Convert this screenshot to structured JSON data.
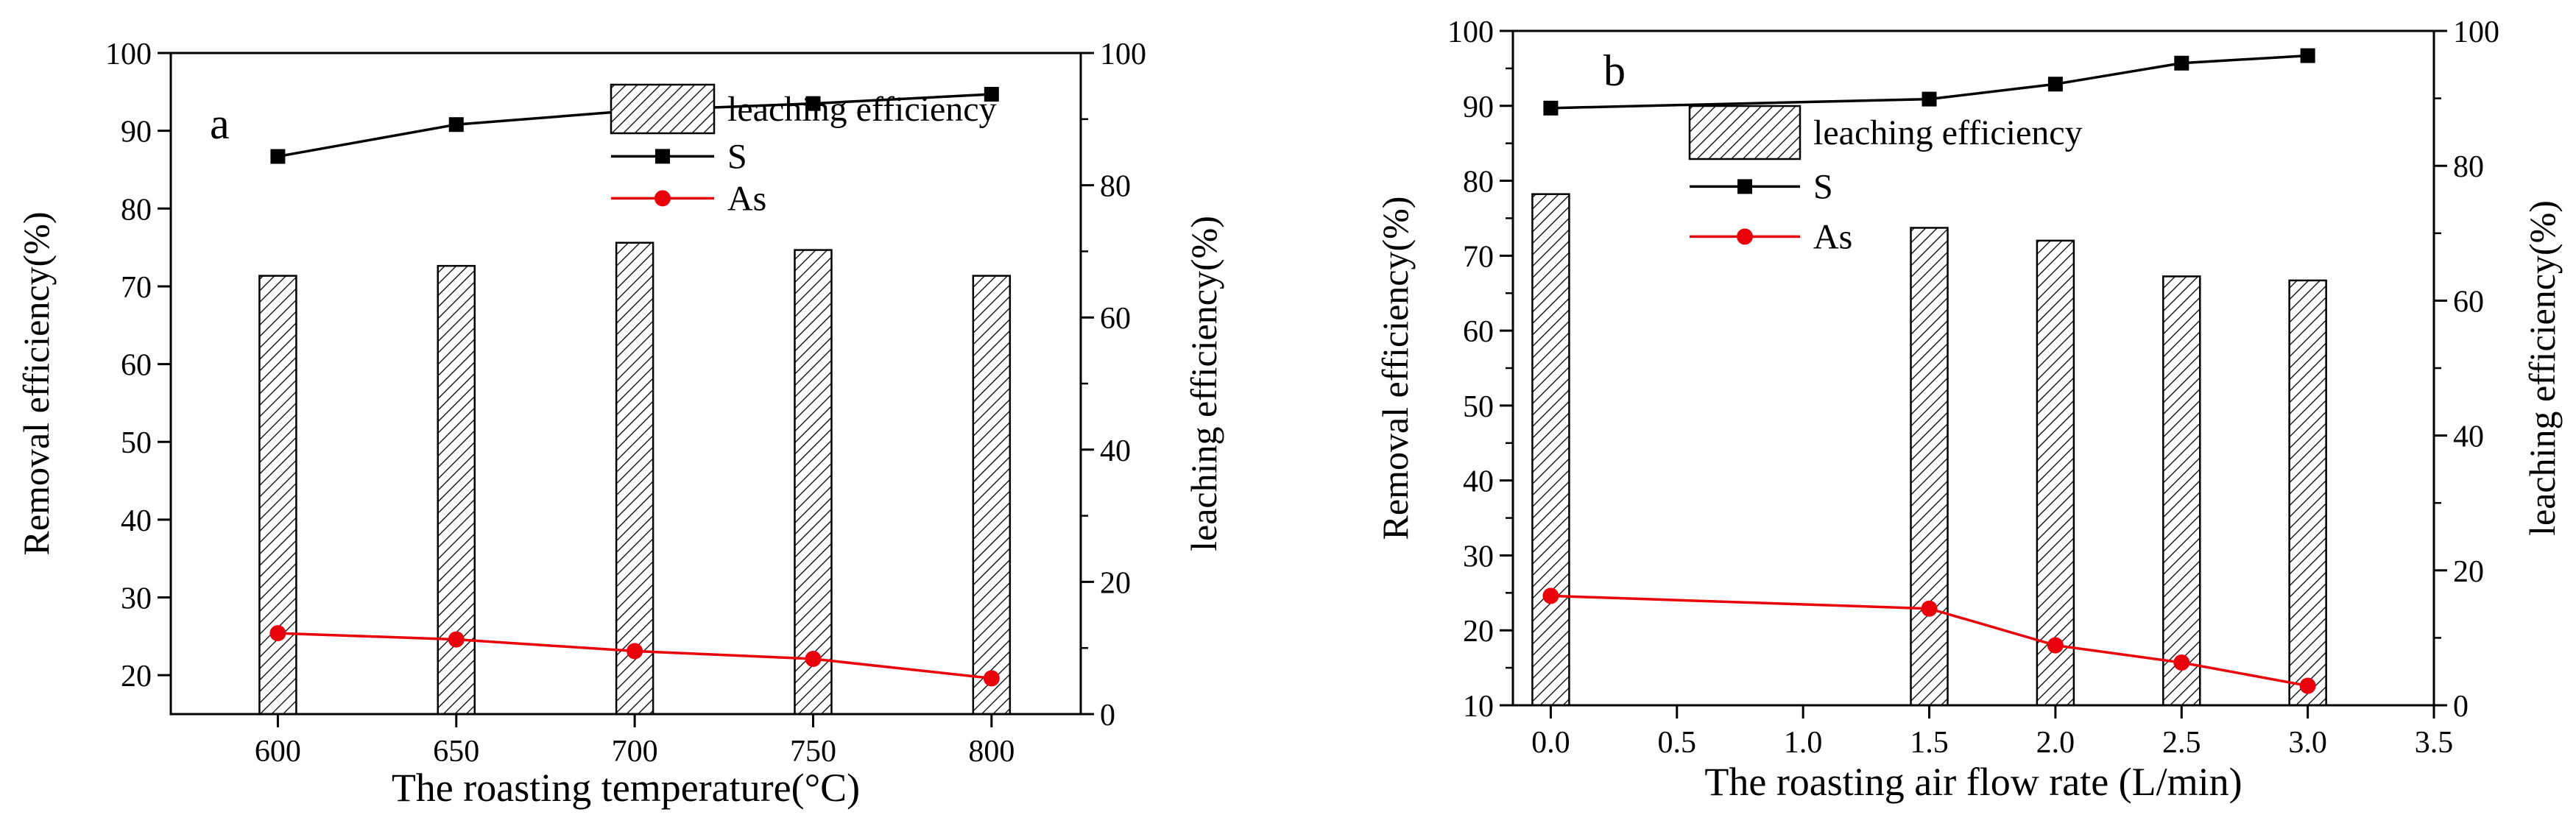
{
  "chart_data": [
    {
      "type": "bar",
      "panel_label": "a",
      "xlabel": "The  roasting temperature(°C)",
      "ylabel": "Removal efficiency(%)",
      "y2label": "leaching efficiency(%)",
      "x_ticks": [
        "600",
        "650",
        "700",
        "750",
        "800"
      ],
      "xlim": [
        570,
        825
      ],
      "ylim": [
        15,
        100
      ],
      "y_ticks": [
        "20",
        "30",
        "40",
        "50",
        "60",
        "70",
        "80",
        "90",
        "100"
      ],
      "y2lim": [
        0,
        100
      ],
      "y2_ticks": [
        "0",
        "20",
        "40",
        "60",
        "80",
        "100"
      ],
      "legend": [
        "leaching efficiency",
        "S",
        "As"
      ],
      "legend_position": "top-right",
      "grid": false,
      "bars": {
        "name": "leaching efficiency",
        "axis": "right",
        "x": [
          600,
          650,
          700,
          750,
          800
        ],
        "values": [
          66.3,
          67.8,
          71.3,
          70.2,
          66.3
        ]
      },
      "series": [
        {
          "name": "S",
          "axis": "left",
          "x": [
            600,
            650,
            700,
            750,
            800
          ],
          "values": [
            86.7,
            90.8,
            92.6,
            93.5,
            94.7
          ],
          "color": "#000000",
          "marker": "square"
        },
        {
          "name": "As",
          "axis": "left",
          "x": [
            600,
            650,
            700,
            750,
            800
          ],
          "values": [
            25.4,
            24.6,
            23.1,
            22.1,
            19.6
          ],
          "color": "#e8000b",
          "marker": "circle"
        }
      ]
    },
    {
      "type": "bar",
      "panel_label": "b",
      "xlabel": "The roasting air flow rate (L/min)",
      "ylabel": "Removal efficiency(%)",
      "y2label": "leaching efficiency(%)",
      "x_ticks": [
        "0.0",
        "0.5",
        "1.0",
        "1.5",
        "2.0",
        "2.5",
        "3.0",
        "3.5"
      ],
      "xlim": [
        -0.15,
        3.5
      ],
      "ylim": [
        10,
        100
      ],
      "y_ticks": [
        "10",
        "20",
        "30",
        "40",
        "50",
        "60",
        "70",
        "80",
        "90",
        "100"
      ],
      "y2lim": [
        0,
        100
      ],
      "y2_ticks": [
        "0",
        "20",
        "40",
        "60",
        "80",
        "100"
      ],
      "legend": [
        "leaching efficiency",
        "S",
        "As"
      ],
      "legend_position": "top-left",
      "grid": false,
      "bars": {
        "name": "leaching efficiency",
        "axis": "right",
        "x": [
          0.0,
          1.5,
          2.0,
          2.5,
          3.0
        ],
        "values": [
          75.8,
          70.8,
          68.9,
          63.6,
          63.0
        ]
      },
      "series": [
        {
          "name": "S",
          "axis": "left",
          "x": [
            0.0,
            1.5,
            2.0,
            2.5,
            3.0
          ],
          "values": [
            89.7,
            90.9,
            92.9,
            95.7,
            96.7
          ],
          "color": "#000000",
          "marker": "square"
        },
        {
          "name": "As",
          "axis": "left",
          "x": [
            0.0,
            1.5,
            2.0,
            2.5,
            3.0
          ],
          "values": [
            24.6,
            22.9,
            18.0,
            15.7,
            12.6
          ],
          "color": "#e8000b",
          "marker": "circle"
        }
      ]
    }
  ]
}
